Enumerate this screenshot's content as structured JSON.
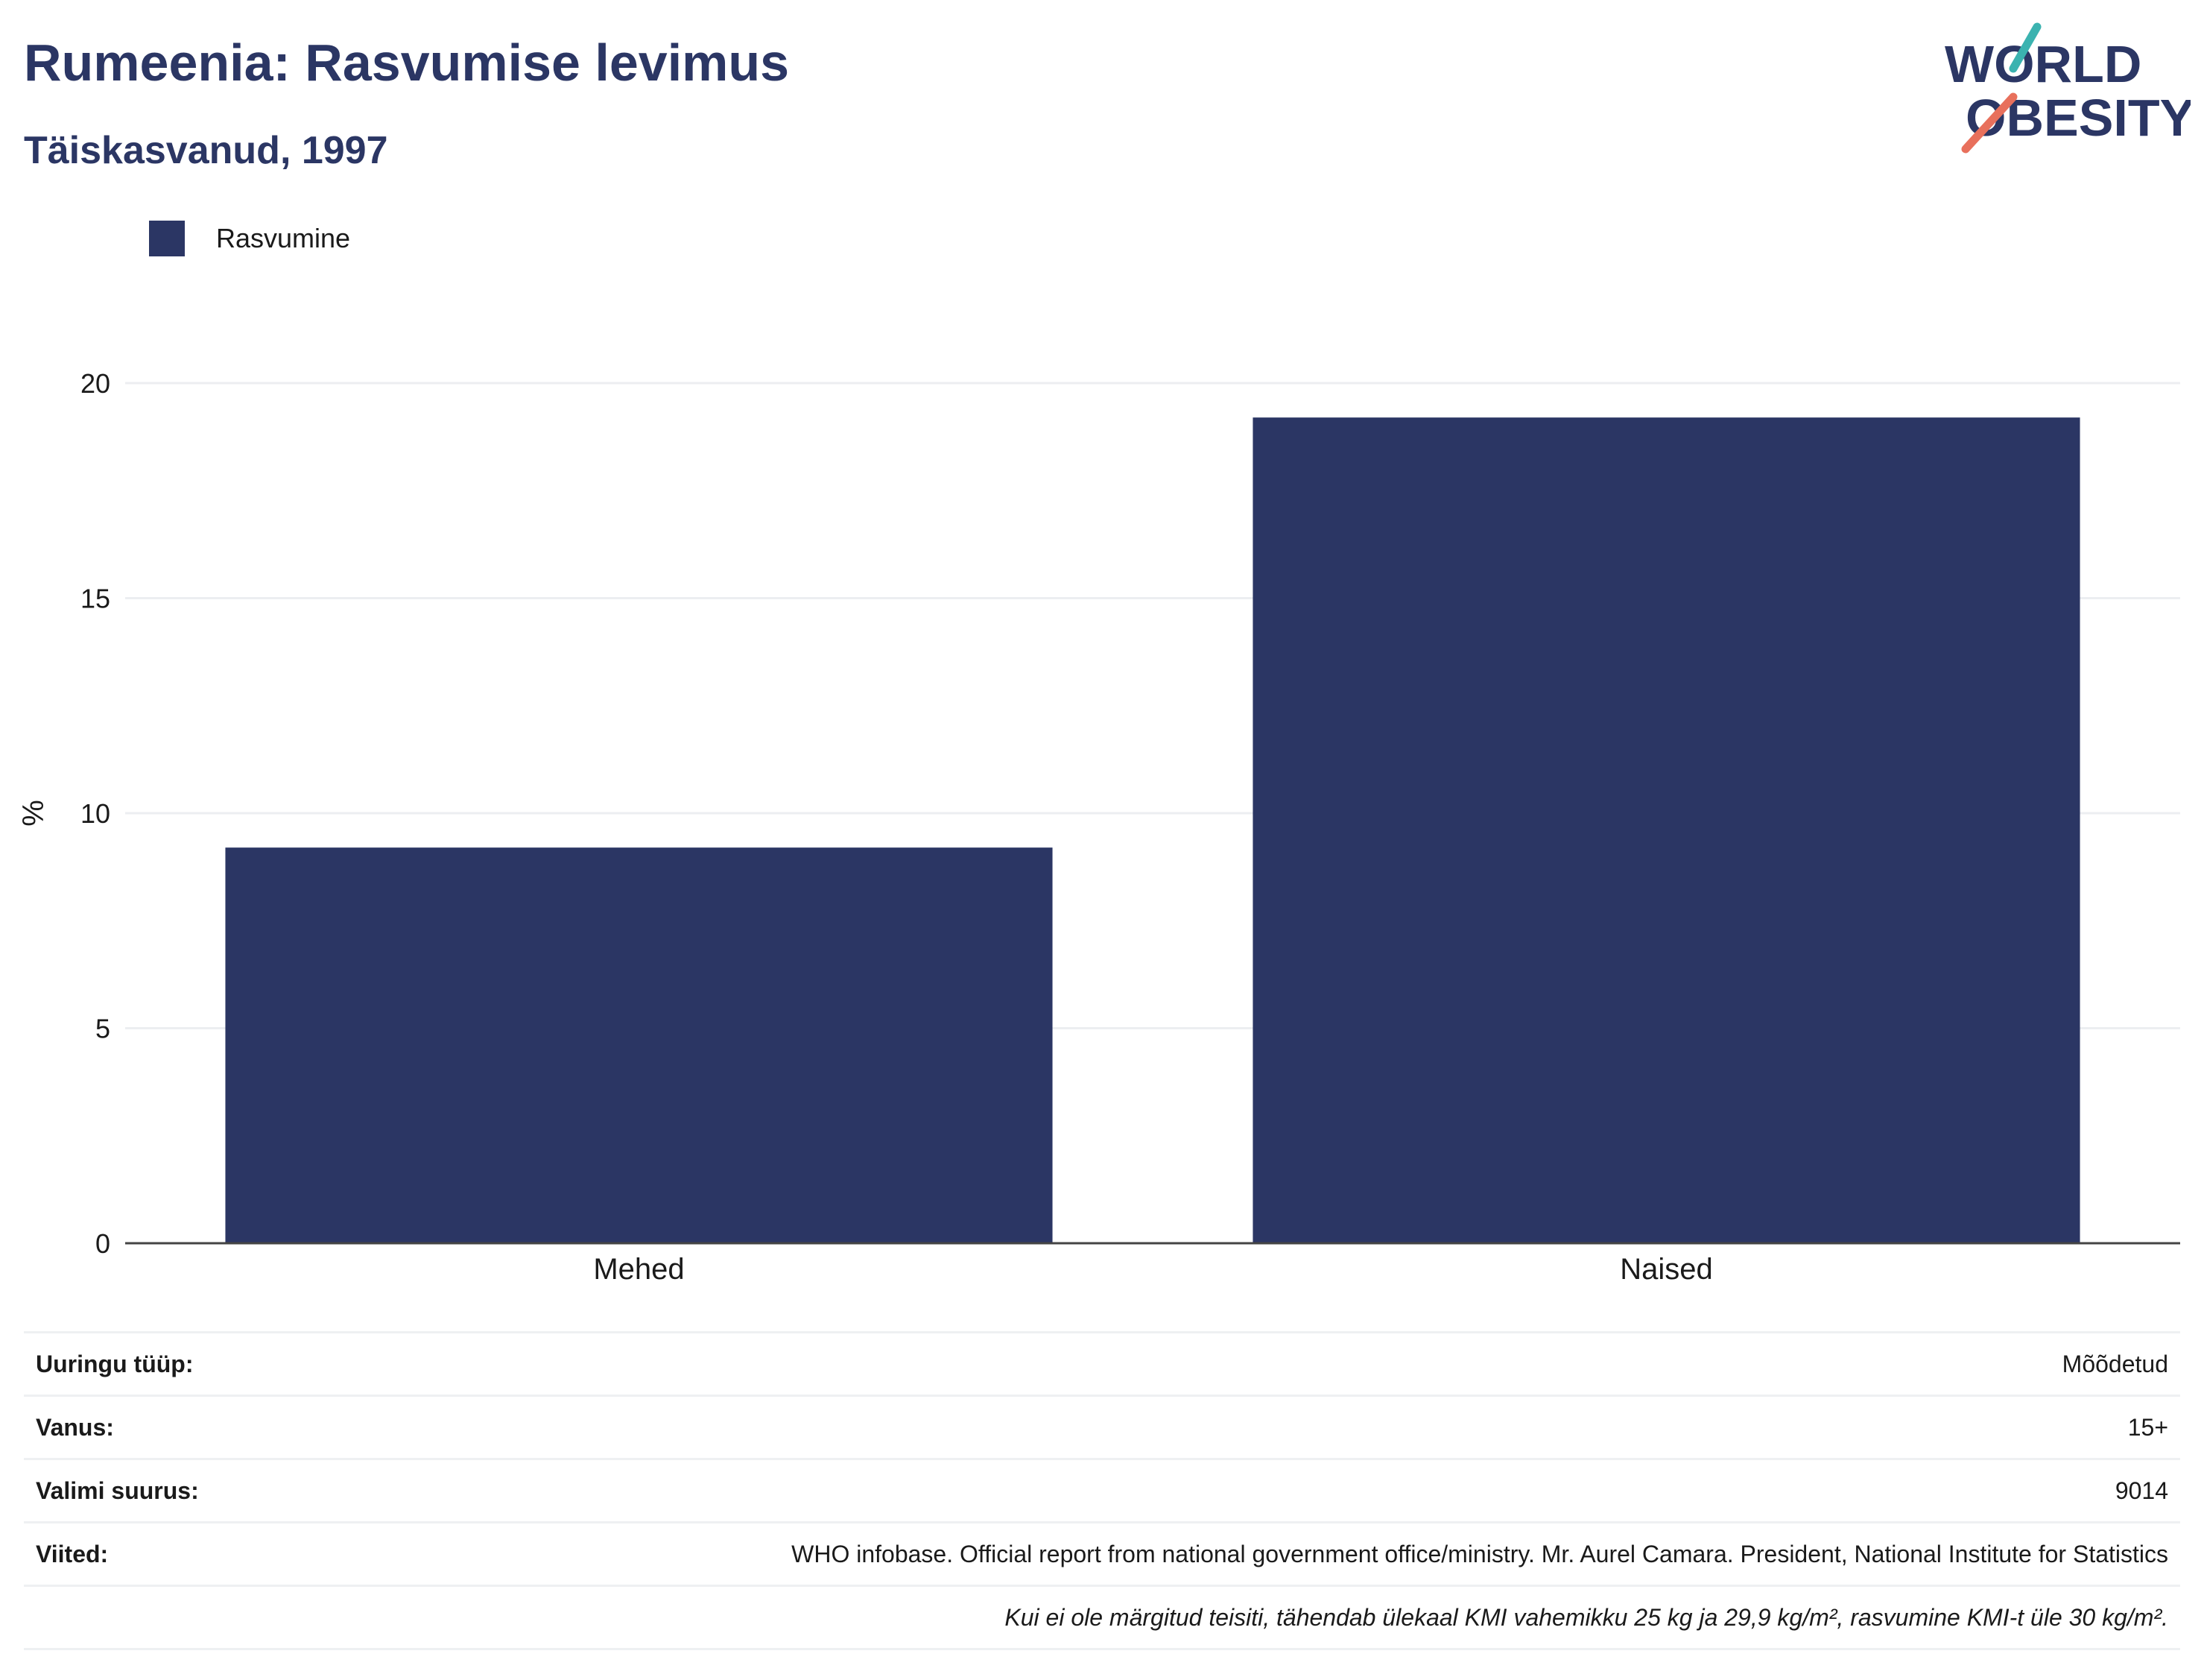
{
  "header": {
    "title": "Rumeenia: Rasvumise levimus",
    "subtitle": "Täiskasvanud, 1997"
  },
  "logo": {
    "line1": "WORLD",
    "line2": "OBESITY"
  },
  "colors": {
    "bar": "#2b3664",
    "title": "#2b3664",
    "logo_teal": "#3bb3b0",
    "logo_coral": "#e8705c"
  },
  "chart_data": {
    "type": "bar",
    "categories": [
      "Mehed",
      "Naised"
    ],
    "series": [
      {
        "name": "Rasvumine",
        "values": [
          9.2,
          19.2
        ]
      }
    ],
    "ylabel": "%",
    "ylim": [
      0,
      20
    ],
    "yticks": [
      0,
      5,
      10,
      15,
      20
    ],
    "grid": true,
    "legend_position": "top-left"
  },
  "info": {
    "rows": [
      {
        "label": "Uuringu tüüp:",
        "value": "Mõõdetud"
      },
      {
        "label": "Vanus:",
        "value": "15+"
      },
      {
        "label": "Valimi suurus:",
        "value": "9014"
      },
      {
        "label": "Viited:",
        "value": "WHO infobase. Official report from national government office/ministry. Mr. Aurel Camara. President, National Institute for Statistics"
      }
    ],
    "note": "Kui ei ole märgitud teisiti, tähendab ülekaal KMI vahemikku 25 kg ja 29,9 kg/m², rasvumine KMI-t üle 30 kg/m²."
  }
}
